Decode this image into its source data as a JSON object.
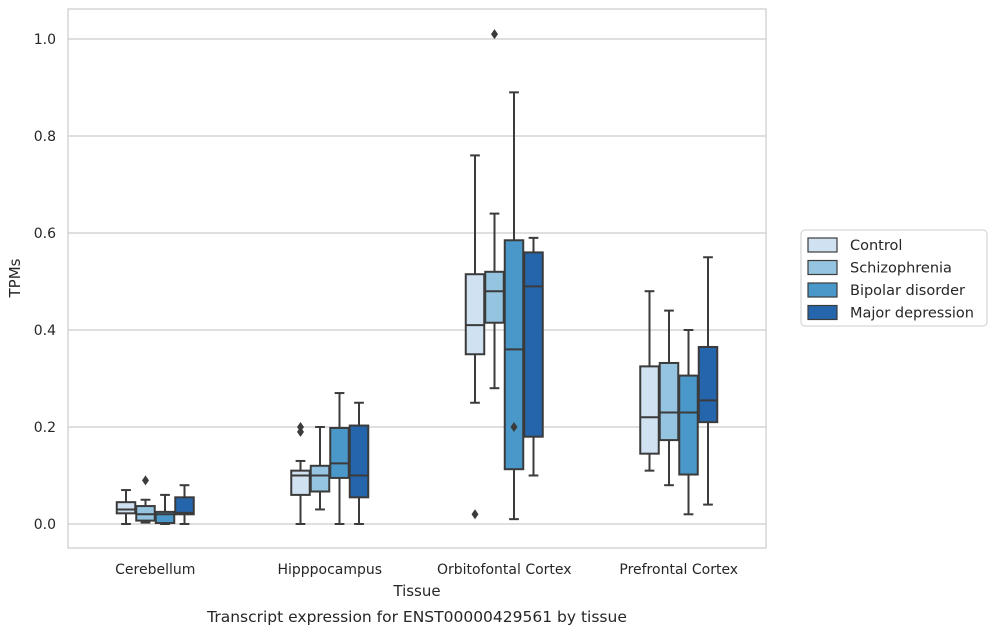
{
  "chart_data": {
    "type": "box",
    "title": "",
    "caption": "Transcript expression for ENST00000429561 by tissue",
    "xlabel": "Tissue",
    "ylabel": "TPMs",
    "ylim": [
      -0.05,
      1.06
    ],
    "yticks": [
      0.0,
      0.2,
      0.4,
      0.6,
      0.8,
      1.0
    ],
    "ytick_labels": [
      "0.0",
      "0.2",
      "0.4",
      "0.6",
      "0.8",
      "1.0"
    ],
    "grid": "horizontal",
    "legend_position": "right",
    "categories": [
      "Cerebellum",
      "Hipppocampus",
      "Orbitofontal Cortex",
      "Prefrontal Cortex"
    ],
    "series": [
      {
        "name": "Control",
        "color": "#d0e1f2",
        "boxes": [
          {
            "whislo": 0.0,
            "q1": 0.022,
            "med": 0.03,
            "q3": 0.045,
            "whishi": 0.07,
            "fliers": []
          },
          {
            "whislo": 0.0,
            "q1": 0.06,
            "med": 0.1,
            "q3": 0.11,
            "whishi": 0.13,
            "fliers": [
              0.19,
              0.2
            ]
          },
          {
            "whislo": 0.25,
            "q1": 0.35,
            "med": 0.41,
            "q3": 0.515,
            "whishi": 0.76,
            "fliers": [
              0.02
            ]
          },
          {
            "whislo": 0.11,
            "q1": 0.145,
            "med": 0.22,
            "q3": 0.325,
            "whishi": 0.48,
            "fliers": []
          }
        ]
      },
      {
        "name": "Schizophrenia",
        "color": "#94c4df",
        "boxes": [
          {
            "whislo": 0.003,
            "q1": 0.007,
            "med": 0.02,
            "q3": 0.037,
            "whishi": 0.05,
            "fliers": [
              0.09
            ]
          },
          {
            "whislo": 0.03,
            "q1": 0.067,
            "med": 0.1,
            "q3": 0.12,
            "whishi": 0.2,
            "fliers": []
          },
          {
            "whislo": 0.28,
            "q1": 0.415,
            "med": 0.48,
            "q3": 0.52,
            "whishi": 0.64,
            "fliers": [
              1.01
            ]
          },
          {
            "whislo": 0.08,
            "q1": 0.173,
            "med": 0.23,
            "q3": 0.332,
            "whishi": 0.44,
            "fliers": []
          }
        ]
      },
      {
        "name": "Bipolar disorder",
        "color": "#4a98c9",
        "boxes": [
          {
            "whislo": 0.0,
            "q1": 0.002,
            "med": 0.02,
            "q3": 0.025,
            "whishi": 0.06,
            "fliers": []
          },
          {
            "whislo": 0.0,
            "q1": 0.095,
            "med": 0.125,
            "q3": 0.198,
            "whishi": 0.27,
            "fliers": []
          },
          {
            "whislo": 0.01,
            "q1": 0.113,
            "med": 0.36,
            "q3": 0.585,
            "whishi": 0.89,
            "fliers": [
              0.2
            ]
          },
          {
            "whislo": 0.02,
            "q1": 0.102,
            "med": 0.23,
            "q3": 0.306,
            "whishi": 0.4,
            "fliers": []
          }
        ]
      },
      {
        "name": "Major depression",
        "color": "#2565ab",
        "boxes": [
          {
            "whislo": 0.0,
            "q1": 0.02,
            "med": 0.023,
            "q3": 0.055,
            "whishi": 0.08,
            "fliers": []
          },
          {
            "whislo": 0.0,
            "q1": 0.055,
            "med": 0.1,
            "q3": 0.203,
            "whishi": 0.25,
            "fliers": []
          },
          {
            "whislo": 0.1,
            "q1": 0.18,
            "med": 0.49,
            "q3": 0.56,
            "whishi": 0.59,
            "fliers": []
          },
          {
            "whislo": 0.04,
            "q1": 0.21,
            "med": 0.255,
            "q3": 0.365,
            "whishi": 0.55,
            "fliers": []
          }
        ]
      }
    ]
  }
}
